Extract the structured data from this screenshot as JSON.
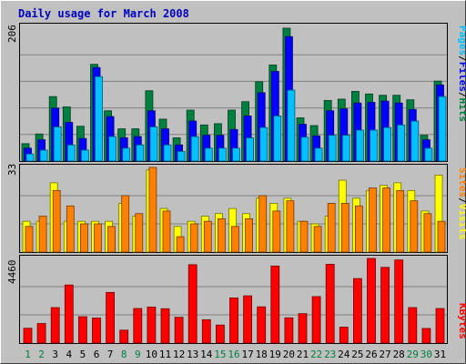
{
  "colors": {
    "frame_bg": "#c0c0c0",
    "plot_bg": "#c0c0c0",
    "title": "#0000c0",
    "hits": "#008040",
    "files": "#0000ff",
    "pages": "#00c0ff",
    "visits": "#ffff00",
    "sites": "#ff8000",
    "kbytes": "#ff0000",
    "weekday_label": "#000000",
    "weekend_label": "#008040"
  },
  "chart_data": [
    {
      "type": "bar",
      "title": "Daily usage for March 2008",
      "categories": [
        "1",
        "2",
        "3",
        "4",
        "5",
        "6",
        "7",
        "8",
        "9",
        "10",
        "11",
        "12",
        "13",
        "14",
        "15",
        "16",
        "17",
        "18",
        "19",
        "20",
        "21",
        "22",
        "23",
        "24",
        "25",
        "26",
        "27",
        "28",
        "29",
        "30",
        "31"
      ],
      "weekend_days": [
        "1",
        "2",
        "8",
        "9",
        "15",
        "16",
        "22",
        "23",
        "29",
        "30"
      ],
      "ymax_label": "206",
      "ylim": [
        0,
        206
      ],
      "axis_title_parts": [
        "Pages",
        "Files",
        "Hits"
      ],
      "series": [
        {
          "name": "Hits",
          "values": [
            27,
            42,
            100,
            84,
            54,
            150,
            78,
            50,
            50,
            109,
            65,
            36,
            79,
            56,
            58,
            79,
            92,
            123,
            149,
            206,
            67,
            55,
            94,
            96,
            108,
            104,
            102,
            102,
            95,
            40,
            124
          ]
        },
        {
          "name": "Files",
          "values": [
            20,
            33,
            82,
            60,
            35,
            145,
            69,
            36,
            38,
            78,
            50,
            25,
            62,
            40,
            40,
            49,
            70,
            106,
            139,
            193,
            57,
            39,
            78,
            81,
            90,
            91,
            93,
            90,
            80,
            33,
            118
          ]
        },
        {
          "name": "Pages",
          "values": [
            11,
            17,
            53,
            25,
            17,
            131,
            38,
            20,
            25,
            53,
            25,
            15,
            38,
            20,
            20,
            20,
            36,
            52,
            70,
            110,
            37,
            20,
            40,
            40,
            48,
            48,
            52,
            56,
            62,
            20,
            100
          ]
        }
      ]
    },
    {
      "type": "bar",
      "ymax_label": "33",
      "ylim": [
        0,
        33
      ],
      "axis_title_parts": [
        "Sites",
        "Visits"
      ],
      "series": [
        {
          "name": "Visits",
          "values": [
            12,
            12,
            27,
            12,
            12,
            12,
            12,
            19,
            14,
            32,
            17,
            10,
            12,
            14,
            15,
            17,
            15,
            21,
            19,
            21,
            12,
            11,
            14,
            28,
            21,
            24,
            26,
            27,
            24,
            16,
            30
          ]
        },
        {
          "name": "Sites",
          "values": [
            10,
            14,
            24,
            18,
            11,
            11,
            10,
            22,
            15,
            33,
            16,
            6,
            11,
            12,
            13,
            10,
            13,
            22,
            16,
            20,
            12,
            10,
            19,
            19,
            18,
            25,
            25,
            24,
            20,
            15,
            12
          ]
        }
      ]
    },
    {
      "type": "bar",
      "ymax_label": "4460",
      "ylim": [
        0,
        4460
      ],
      "axis_title_parts": [
        "KBytes"
      ],
      "series": [
        {
          "name": "KBytes",
          "values": [
            780,
            1030,
            1870,
            3060,
            1390,
            1320,
            2670,
            680,
            1820,
            1900,
            1810,
            1360,
            4130,
            1230,
            950,
            2380,
            2490,
            1910,
            4060,
            1330,
            1550,
            2450,
            4150,
            840,
            3400,
            4460,
            3990,
            4380,
            1870,
            770,
            1820
          ]
        }
      ]
    }
  ]
}
